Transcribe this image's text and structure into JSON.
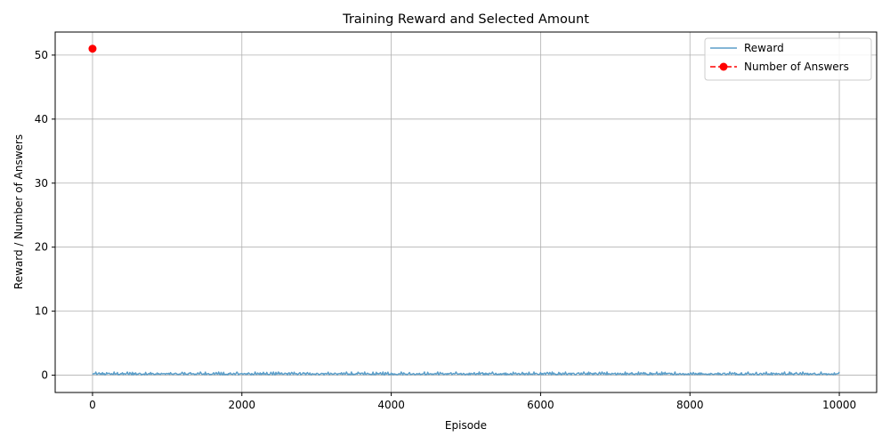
{
  "chart_data": {
    "type": "line",
    "title": "Training Reward and Selected Amount",
    "xlabel": "Episode",
    "ylabel": "Reward / Number of Answers",
    "xlim": [
      -500,
      10500
    ],
    "ylim": [
      -2.7,
      53.6
    ],
    "x_ticks": [
      0,
      2000,
      4000,
      6000,
      8000,
      10000
    ],
    "y_ticks": [
      0,
      10,
      20,
      30,
      40,
      50
    ],
    "grid": true,
    "legend_position": "top-right",
    "series": [
      {
        "name": "Reward",
        "color": "#5b9ec9",
        "style": "solid",
        "x_range": [
          0,
          10000
        ],
        "baseline": 0.15,
        "typical_max": 0.5,
        "values": [
          0.1,
          0.3,
          0.2,
          0.15,
          0.4,
          0.1,
          0.25,
          0.2,
          0.3,
          0.1,
          0.2,
          0.15,
          0.3,
          0.2,
          0.25,
          0.1,
          0.2,
          0.3,
          0.15,
          0.2,
          0.6,
          0.2
        ]
      },
      {
        "name": "Number of Answers",
        "color": "#ff0000",
        "style": "dashed",
        "marker": "circle",
        "points": [
          {
            "x": 0,
            "y": 51
          }
        ]
      }
    ]
  }
}
